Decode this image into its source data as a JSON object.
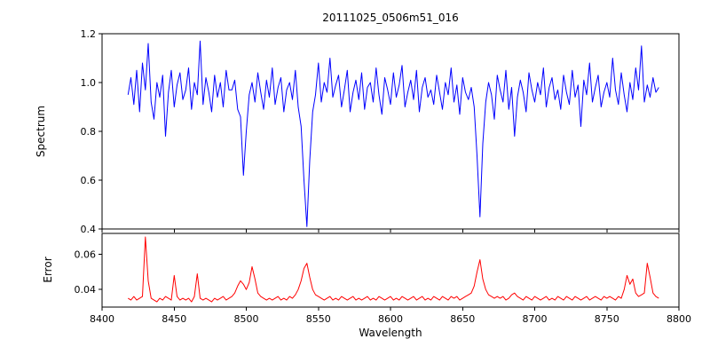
{
  "title": "20111025_0506m51_016",
  "xlabel": "Wavelength",
  "chart_data": [
    {
      "type": "line",
      "panel": "spectrum",
      "ylabel": "Spectrum",
      "color": "#0000ff",
      "xlim": [
        8400,
        8800
      ],
      "ylim": [
        0.4,
        1.2
      ],
      "x_ticks": [
        8400,
        8450,
        8500,
        8550,
        8600,
        8650,
        8700,
        8750,
        8800
      ],
      "y_ticks": [
        "0.4",
        "0.6",
        "0.8",
        "1.0",
        "1.2"
      ],
      "x_start": 8418,
      "x_step": 2,
      "values": [
        0.95,
        1.02,
        0.91,
        1.05,
        0.88,
        1.08,
        0.97,
        1.16,
        0.92,
        0.85,
        1.0,
        0.94,
        1.03,
        0.78,
        0.96,
        1.05,
        0.9,
        0.99,
        1.04,
        0.93,
        0.97,
        1.06,
        0.89,
        1.0,
        0.95,
        1.17,
        0.91,
        1.02,
        0.96,
        0.88,
        1.03,
        0.94,
        1.0,
        0.9,
        1.05,
        0.97,
        0.97,
        1.01,
        0.89,
        0.86,
        0.62,
        0.8,
        0.95,
        1.0,
        0.92,
        1.04,
        0.96,
        0.89,
        1.01,
        0.94,
        1.06,
        0.91,
        0.98,
        1.02,
        0.88,
        0.97,
        1.0,
        0.93,
        1.05,
        0.9,
        0.82,
        0.6,
        0.41,
        0.68,
        0.88,
        0.95,
        1.08,
        0.92,
        1.0,
        0.96,
        1.1,
        0.94,
        0.99,
        1.03,
        0.9,
        0.97,
        1.05,
        0.88,
        0.96,
        1.01,
        0.93,
        1.04,
        0.89,
        0.98,
        1.0,
        0.92,
        1.06,
        0.95,
        0.87,
        1.02,
        0.97,
        0.91,
        1.04,
        0.94,
        0.99,
        1.07,
        0.9,
        0.96,
        1.01,
        0.93,
        1.05,
        0.88,
        0.98,
        1.02,
        0.94,
        0.97,
        0.91,
        1.03,
        0.96,
        0.89,
        1.0,
        0.95,
        1.06,
        0.92,
        0.99,
        0.87,
        1.02,
        0.96,
        0.93,
        0.98,
        0.9,
        0.7,
        0.45,
        0.75,
        0.92,
        1.0,
        0.95,
        0.85,
        1.03,
        0.97,
        0.92,
        1.05,
        0.89,
        0.98,
        0.78,
        0.94,
        1.01,
        0.96,
        0.88,
        1.04,
        0.97,
        0.92,
        1.0,
        0.95,
        1.06,
        0.9,
        0.98,
        1.02,
        0.93,
        0.97,
        0.89,
        1.03,
        0.96,
        0.91,
        1.05,
        0.94,
        0.99,
        0.82,
        1.01,
        0.95,
        1.08,
        0.92,
        0.98,
        1.03,
        0.9,
        0.96,
        1.0,
        0.94,
        1.1,
        0.97,
        0.91,
        1.04,
        0.95,
        0.88,
        1.0,
        0.93,
        1.06,
        0.97,
        1.15,
        0.92,
        0.99,
        0.94,
        1.02,
        0.96,
        0.98
      ]
    },
    {
      "type": "line",
      "panel": "error",
      "ylabel": "Error",
      "color": "#ff0000",
      "xlim": [
        8400,
        8800
      ],
      "ylim": [
        0.03,
        0.072
      ],
      "x_ticks": [
        8400,
        8450,
        8500,
        8550,
        8600,
        8650,
        8700,
        8750,
        8800
      ],
      "y_ticks": [
        "0.04",
        "0.06"
      ],
      "x_start": 8418,
      "x_step": 2,
      "values": [
        0.035,
        0.034,
        0.036,
        0.034,
        0.035,
        0.036,
        0.07,
        0.045,
        0.035,
        0.034,
        0.033,
        0.035,
        0.034,
        0.036,
        0.035,
        0.034,
        0.048,
        0.036,
        0.034,
        0.035,
        0.034,
        0.035,
        0.033,
        0.036,
        0.049,
        0.035,
        0.034,
        0.035,
        0.034,
        0.033,
        0.035,
        0.034,
        0.035,
        0.036,
        0.034,
        0.035,
        0.036,
        0.038,
        0.042,
        0.045,
        0.043,
        0.04,
        0.044,
        0.053,
        0.046,
        0.038,
        0.036,
        0.035,
        0.034,
        0.035,
        0.034,
        0.035,
        0.036,
        0.034,
        0.035,
        0.034,
        0.036,
        0.035,
        0.037,
        0.04,
        0.045,
        0.052,
        0.055,
        0.047,
        0.04,
        0.037,
        0.036,
        0.035,
        0.034,
        0.035,
        0.036,
        0.034,
        0.035,
        0.034,
        0.036,
        0.035,
        0.034,
        0.035,
        0.036,
        0.034,
        0.035,
        0.034,
        0.035,
        0.036,
        0.034,
        0.035,
        0.034,
        0.036,
        0.035,
        0.034,
        0.035,
        0.036,
        0.034,
        0.035,
        0.034,
        0.036,
        0.035,
        0.034,
        0.035,
        0.036,
        0.034,
        0.035,
        0.036,
        0.034,
        0.035,
        0.034,
        0.036,
        0.035,
        0.034,
        0.036,
        0.035,
        0.034,
        0.036,
        0.035,
        0.036,
        0.034,
        0.035,
        0.036,
        0.037,
        0.038,
        0.042,
        0.05,
        0.057,
        0.046,
        0.04,
        0.037,
        0.036,
        0.035,
        0.036,
        0.035,
        0.036,
        0.034,
        0.035,
        0.037,
        0.038,
        0.036,
        0.035,
        0.034,
        0.036,
        0.035,
        0.034,
        0.036,
        0.035,
        0.034,
        0.035,
        0.036,
        0.034,
        0.035,
        0.034,
        0.036,
        0.035,
        0.034,
        0.036,
        0.035,
        0.034,
        0.036,
        0.035,
        0.034,
        0.035,
        0.036,
        0.034,
        0.035,
        0.036,
        0.035,
        0.034,
        0.036,
        0.035,
        0.036,
        0.035,
        0.034,
        0.036,
        0.035,
        0.04,
        0.048,
        0.043,
        0.046,
        0.038,
        0.036,
        0.037,
        0.038,
        0.055,
        0.047,
        0.038,
        0.036,
        0.035
      ]
    }
  ]
}
